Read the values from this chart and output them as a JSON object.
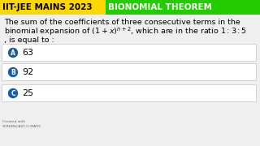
{
  "title_part1": "IIT-JEE MAINS 2023 ",
  "title_part2": "BIONOMIAL THEOREM",
  "title_bg1": "#FFD700",
  "title_bg2": "#22CC00",
  "title_text_color1": "#000000",
  "title_text_color2": "#FFFFFF",
  "body_text_line1": "The sum of the coefficients of three consecutive terms in the",
  "body_text_line2": "binomial expansion of $(1 + x)^{n+2}$, which are in the ratio $1 : 3 : 5$",
  "body_text_line3": ", is equal to :",
  "option_a_label": "A",
  "option_a_value": "63",
  "option_b_label": "B",
  "option_b_value": "92",
  "option_c_label": "C",
  "option_c_value": "25",
  "option_circle_color": "#1a5aaa",
  "option_text_color": "#000000",
  "bg_color": "#F5F5F5",
  "body_font_size": 6.8,
  "option_font_size": 8.0,
  "option_box_color": "#FFFFFF",
  "option_box_edge": "#CCCCCC",
  "watermark1": "Created with",
  "watermark2": "SCREENCAST-O-MATIC"
}
